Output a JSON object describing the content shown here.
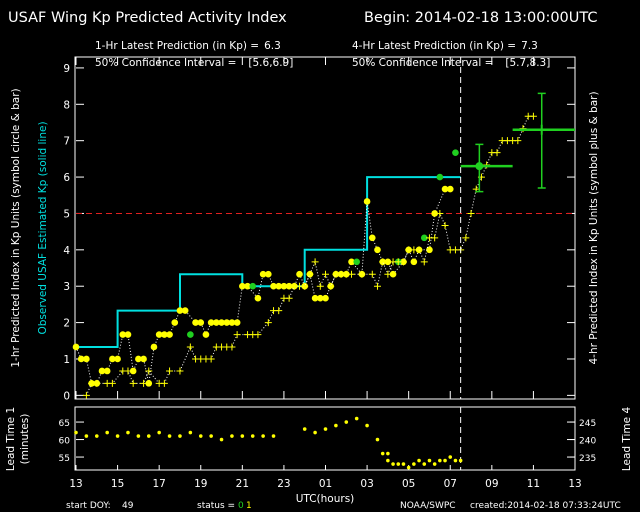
{
  "chart_data": [
    {
      "type": "scatter",
      "title": "USAF Wing Kp Predicted Activity Index",
      "begin": "Begin: 2014-02-18 13:00:00UTC",
      "xlabel": "UTC(hours)",
      "ylabel": "1-hr Predicted Index in Kp Units (symbol circle & bar)",
      "ylabel_observed": "Observed USAF Estimated Kp (solid line)",
      "y2label": "4-hr Predicted Index in Kp Units (symbol plus & bar)",
      "xlim": [
        0,
        24
      ],
      "xticks": [
        {
          "value": 0,
          "label": "13"
        },
        {
          "value": 2,
          "label": "15"
        },
        {
          "value": 4,
          "label": "17"
        },
        {
          "value": 6,
          "label": "19"
        },
        {
          "value": 8,
          "label": "21"
        },
        {
          "value": 10,
          "label": "23"
        },
        {
          "value": 12,
          "label": "01"
        },
        {
          "value": 14,
          "label": "03"
        },
        {
          "value": 16,
          "label": "05"
        },
        {
          "value": 18,
          "label": "07"
        },
        {
          "value": 20,
          "label": "09"
        },
        {
          "value": 22,
          "label": "11"
        },
        {
          "value": 24,
          "label": "13"
        }
      ],
      "ylim": [
        -0.1,
        9.3
      ],
      "yticks": [
        0,
        1,
        2,
        3,
        4,
        5,
        6,
        7,
        8,
        9
      ],
      "threshold": {
        "value": 5,
        "color": "#e02020"
      },
      "now": 18.5,
      "series": [
        {
          "color": "#00e0e0",
          "line": "solid",
          "marker": "none",
          "x": [
            0,
            2,
            2,
            5,
            5,
            8,
            8,
            11,
            11,
            14,
            14,
            18.5
          ],
          "values": [
            1.33,
            1.33,
            2.33,
            2.33,
            3.33,
            3.33,
            3,
            3,
            4,
            4,
            6,
            6
          ]
        },
        {
          "color": "#ffff00",
          "line": "dotted",
          "marker": "circle",
          "x": [
            0,
            0.25,
            0.5,
            0.75,
            1,
            1.25,
            1.5,
            1.75,
            2,
            2.25,
            2.5,
            2.75,
            3,
            3.25,
            3.5,
            3.75,
            4,
            4.25,
            4.5,
            4.75,
            5,
            5.25,
            5.75,
            6,
            6.25,
            6.5,
            6.75,
            7,
            7.25,
            7.5,
            7.75,
            8,
            8.25,
            8.75,
            9,
            9.25,
            9.5,
            9.75,
            10,
            10.25,
            10.5,
            10.75,
            11,
            11.25,
            11.5,
            11.75,
            12,
            12.25,
            12.5,
            12.75,
            13,
            13.25,
            13.75,
            14,
            14.25,
            14.5,
            14.75,
            15,
            15.25,
            15.75,
            16,
            16.25,
            16.5,
            17,
            17.25,
            17.75,
            18
          ],
          "values": [
            1.33,
            1,
            1,
            0.33,
            0.33,
            0.67,
            0.67,
            1,
            1,
            1.67,
            1.67,
            0.67,
            1,
            1,
            0.33,
            1.33,
            1.67,
            1.67,
            1.67,
            2,
            2.33,
            2.33,
            2,
            2,
            1.67,
            2,
            2,
            2,
            2,
            2,
            2,
            3,
            3,
            2.67,
            3.33,
            3.33,
            3,
            3,
            3,
            3,
            3,
            3.33,
            3,
            3.33,
            2.67,
            2.67,
            2.67,
            3,
            3.33,
            3.33,
            3.33,
            3.67,
            3.33,
            5.33,
            4.33,
            4,
            3.67,
            3.67,
            3.33,
            3.67,
            4,
            3.67,
            4,
            4,
            5,
            5.67,
            5.67
          ]
        },
        {
          "color": "#20d020",
          "line": "none",
          "marker": "circle",
          "x": [
            5.5,
            8.5,
            13.5,
            15.5,
            16.75,
            17.5,
            18.25
          ],
          "values": [
            1.67,
            3,
            3.67,
            3.67,
            4.33,
            6,
            6.67
          ]
        },
        {
          "color": "#ffff00",
          "line": "dotted",
          "marker": "plus",
          "x": [
            0.5,
            0.75,
            1,
            1.5,
            1.75,
            2.25,
            2.5,
            2.75,
            3.25,
            3.5,
            4,
            4.25,
            4.5,
            5,
            5.5,
            5.75,
            6,
            6.25,
            6.5,
            6.75,
            7,
            7.25,
            7.5,
            7.75,
            8.25,
            8.5,
            8.75,
            9.25,
            9.5,
            9.75,
            10,
            10.25,
            10.5,
            10.75,
            11,
            11.25,
            11.5,
            11.75,
            12,
            12.25,
            12.5,
            12.75,
            13,
            13.25,
            13.75,
            14.25,
            14.5,
            14.75,
            15,
            15.25,
            15.5,
            15.75,
            16,
            16.25,
            16.5,
            16.75,
            17,
            17.25,
            17.5,
            17.75,
            18,
            18.25,
            18.5,
            18.75,
            19,
            19.25,
            19.5,
            19.75,
            20,
            20.25,
            20.5,
            20.75,
            21,
            21.25,
            21.5,
            21.75,
            22
          ],
          "values": [
            0,
            0.33,
            0.33,
            0.33,
            0.33,
            0.67,
            0.67,
            0.33,
            0.33,
            0.67,
            0.33,
            0.33,
            0.67,
            0.67,
            1.33,
            1,
            1,
            1,
            1,
            1.33,
            1.33,
            1.33,
            1.33,
            1.67,
            1.67,
            1.67,
            1.67,
            2,
            2.33,
            2.33,
            2.67,
            2.67,
            3,
            3,
            3,
            3.33,
            3.67,
            3,
            3.33,
            3,
            3.33,
            3.33,
            3.33,
            3.33,
            3.33,
            3.33,
            3,
            3.67,
            3.33,
            3.67,
            3.67,
            3.67,
            4,
            4,
            4,
            3.67,
            4.33,
            4.33,
            5,
            4.67,
            4,
            4,
            4,
            4.33,
            5,
            5.67,
            6,
            6.33,
            6.67,
            6.67,
            7,
            7,
            7,
            7,
            7.33,
            7.67,
            7.67
          ]
        }
      ],
      "latest": [
        {
          "label": "1-Hr Latest Prediction (in Kp) =",
          "value": 6.3,
          "interval_text": "50% Confidence Interval =",
          "interval_label": "[5.6,6.9]",
          "low": 5.6,
          "high": 6.9,
          "x": 19.4,
          "xspan": [
            18.5,
            21
          ],
          "marker": "circle",
          "color": "#20d020"
        },
        {
          "label": "4-Hr Latest Prediction (in Kp) =",
          "value": 7.3,
          "interval_text": "50% Confidence Interval =",
          "interval_label": "[5.7,8.3]",
          "low": 5.7,
          "high": 8.3,
          "x": 22.4,
          "xspan": [
            21,
            24
          ],
          "marker": "plus",
          "color": "#20d020"
        }
      ]
    },
    {
      "type": "scatter",
      "ylabel": "Lead Time 1",
      "ylabel2": "(minutes)",
      "y2label": "Lead Time 4",
      "xlim": [
        0,
        24
      ],
      "ylim": [
        51.3,
        69.3
      ],
      "yticks": [
        55,
        60,
        65
      ],
      "y2lim": [
        231.3,
        249.3
      ],
      "y2ticks": [
        235,
        240,
        245
      ],
      "series": [
        {
          "color": "#ffff00",
          "marker": "dot",
          "x": [
            0,
            0.5,
            1,
            1.5,
            2,
            2.5,
            3,
            3.5,
            4,
            4.5,
            5,
            5.5,
            6,
            6.5,
            7,
            7.5,
            8,
            8.5,
            9,
            9.5,
            11,
            11.5,
            12,
            12.5,
            13,
            13.5,
            14,
            14.5,
            15
          ],
          "values": [
            62,
            61,
            61,
            62,
            61,
            62,
            61,
            61,
            62,
            61,
            61,
            62,
            61,
            61,
            60,
            61,
            61,
            61,
            61,
            61,
            63,
            62,
            63,
            64,
            65,
            66,
            64,
            60,
            56
          ]
        },
        {
          "color": "#ffff00",
          "marker": "dot",
          "axis": "y2",
          "x": [
            14.75,
            15,
            15.25,
            15.5,
            15.75,
            16,
            16.25,
            16.5,
            16.75,
            17,
            17.25,
            17.5,
            17.75,
            18,
            18.25,
            18.5
          ],
          "values": [
            236,
            234,
            233,
            233,
            233,
            232,
            233,
            234,
            233,
            234,
            233,
            234,
            234,
            235,
            234,
            234
          ]
        }
      ]
    }
  ],
  "footer": {
    "start_doy_label": "start DOY:",
    "start_doy": 49,
    "status_label": "status =",
    "status": [
      0,
      1
    ],
    "status_colors": [
      "#20d020",
      "#ffff00"
    ],
    "source": "NOAA/SWPC",
    "created": "created:2014-02-18 07:33:24UTC"
  }
}
